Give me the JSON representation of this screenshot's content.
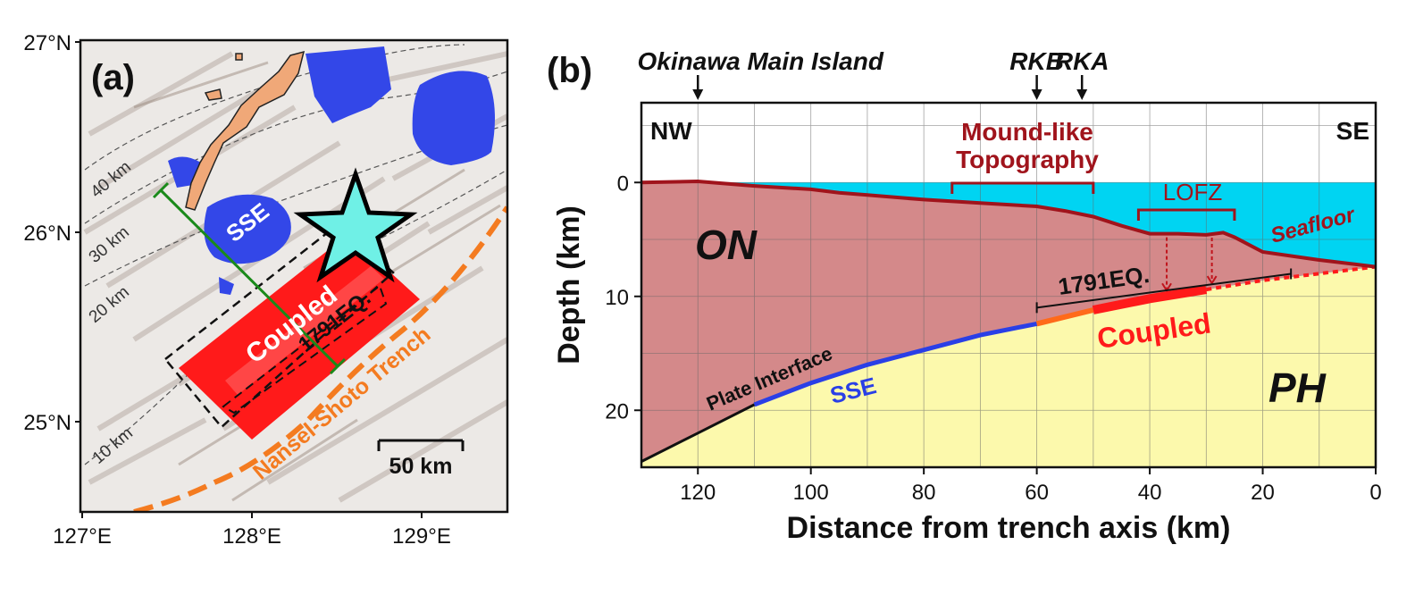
{
  "panel_a": {
    "label": "(a)",
    "lat_ticks": [
      "27°N",
      "26°N",
      "25°N"
    ],
    "lon_ticks": [
      "127°E",
      "128°E",
      "129°E"
    ],
    "contour_labels": [
      "40 km",
      "30 km",
      "20 km",
      "10 km"
    ],
    "sse_label": "SSE",
    "coupled_label": "Coupled",
    "eq_label": "1791EQ.",
    "trench_label": "Nansel-Shoto Trench",
    "scalebar_label": "50 km",
    "colors": {
      "land": "#f0a878",
      "sse": "#3347e8",
      "coupled": "#ff1a1a",
      "trench": "#f47b20",
      "profile": "#1a8a1a",
      "star": "#6ff0e6"
    }
  },
  "panel_b": {
    "label": "(b)",
    "top_labels": [
      "Okinawa Main Island",
      "RKB",
      "RKA"
    ],
    "corner_left": "NW",
    "corner_right": "SE",
    "mound_label_1": "Mound-like",
    "mound_label_2": "Topography",
    "lofz_label": "LOFZ",
    "seafloor_label": "Seafloor",
    "on_label": "ON",
    "ph_label": "PH",
    "eq_label": "1791EQ.",
    "coupled_label": "Coupled",
    "sse_label": "SSE",
    "plate_label": "Plate Interface",
    "colors": {
      "sea": "#00d4f2",
      "overriding": "#d4898a",
      "subducting": "#fcf9ac",
      "seafloor_line": "#a0141c",
      "sse_line": "#2a3fe6",
      "coupled_line": "#ff1a1a",
      "transition_line": "#ff6a1a"
    },
    "chart_data": {
      "type": "area",
      "xlabel": "Distance from trench axis (km)",
      "ylabel": "Depth (km)",
      "xlim": [
        130,
        0
      ],
      "ylim": [
        25,
        -7
      ],
      "x_ticks": [
        120,
        100,
        80,
        60,
        40,
        20,
        0
      ],
      "y_ticks": [
        0,
        10,
        20
      ],
      "markers": [
        {
          "name": "Okinawa Main Island",
          "x": 120
        },
        {
          "name": "RKB",
          "x": 60
        },
        {
          "name": "RKA",
          "x": 52
        }
      ],
      "seafloor": {
        "x": [
          130,
          120,
          110,
          100,
          95,
          90,
          80,
          70,
          60,
          55,
          50,
          45,
          40,
          35,
          30,
          27,
          25,
          20,
          10,
          0
        ],
        "y": [
          0,
          -0.1,
          0.3,
          0.6,
          0.9,
          1.1,
          1.5,
          1.8,
          2.1,
          2.5,
          3.0,
          3.8,
          4.5,
          4.5,
          4.6,
          4.4,
          4.8,
          6.1,
          6.8,
          7.4
        ]
      },
      "plate_interface": {
        "x": [
          130,
          120,
          110,
          100,
          90,
          80,
          70,
          60,
          50,
          40,
          30,
          20,
          10,
          0
        ],
        "y": [
          24.5,
          22.0,
          19.5,
          17.6,
          16.0,
          14.7,
          13.4,
          12.4,
          11.2,
          10.2,
          9.4,
          8.6,
          8.0,
          7.4
        ]
      },
      "segments": [
        {
          "name": "SSE",
          "x_from": 110,
          "x_to": 60
        },
        {
          "name": "Transition",
          "x_from": 60,
          "x_to": 50
        },
        {
          "name": "Coupled",
          "x_from": 50,
          "x_to": 30
        }
      ],
      "mound_bracket": [
        75,
        50
      ],
      "lofz_bracket": [
        42,
        25
      ],
      "lofz_arrows": [
        37,
        29
      ],
      "eq_span": [
        60,
        15
      ]
    }
  }
}
